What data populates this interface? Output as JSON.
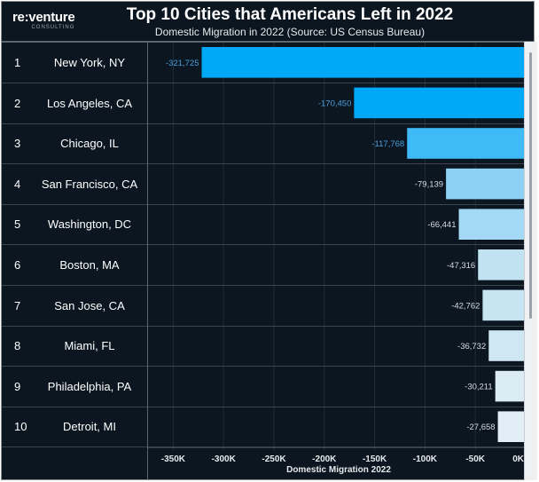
{
  "header": {
    "logo_main": "re:venture",
    "logo_sub": "CONSULTING",
    "title": "Top 10 Cities that Americans Left in 2022",
    "subtitle": "Domestic Migration in 2022 (Source: US Census Bureau)"
  },
  "rows": [
    {
      "rank": "1",
      "city": "New York, NY"
    },
    {
      "rank": "2",
      "city": "Los Angeles, CA"
    },
    {
      "rank": "3",
      "city": "Chicago, IL"
    },
    {
      "rank": "4",
      "city": "San Francisco, CA"
    },
    {
      "rank": "5",
      "city": "Washington, DC"
    },
    {
      "rank": "6",
      "city": "Boston, MA"
    },
    {
      "rank": "7",
      "city": "San Jose, CA"
    },
    {
      "rank": "8",
      "city": "Miami, FL"
    },
    {
      "rank": "9",
      "city": "Philadelphia, PA"
    },
    {
      "rank": "10",
      "city": "Detroit, MI"
    }
  ],
  "chart_data": {
    "type": "bar",
    "orientation": "horizontal",
    "title": "Top 10 Cities that Americans Left in 2022",
    "subtitle": "Domestic Migration in 2022 (Source: US Census Bureau)",
    "categories": [
      "New York, NY",
      "Los Angeles, CA",
      "Chicago, IL",
      "San Francisco, CA",
      "Washington, DC",
      "Boston, MA",
      "San Jose, CA",
      "Miami, FL",
      "Philadelphia, PA",
      "Detroit, MI"
    ],
    "values": [
      -321725,
      -170450,
      -117768,
      -79139,
      -66441,
      -47316,
      -42762,
      -36732,
      -30211,
      -27658
    ],
    "data_labels": [
      "-321,725",
      "-170,450",
      "-117,768",
      "-79,139",
      "-66,441",
      "-47,316",
      "-42,762",
      "-36,732",
      "-30,211",
      "-27,658"
    ],
    "colors": [
      "#00a9f7",
      "#00a9f7",
      "#3fbaf7",
      "#8dd2f6",
      "#a3d9f4",
      "#c0e2f1",
      "#c6e4f1",
      "#cfe7f2",
      "#dcecf4",
      "#e1eef5"
    ],
    "label_color_dark": "#4a9fe0",
    "label_color_light": "#d7dde2",
    "xlabel": "Domestic Migration 2022",
    "ylabel": "",
    "xlim": [
      -380000,
      0
    ],
    "x_ticks": [
      -350000,
      -300000,
      -250000,
      -200000,
      -150000,
      -100000,
      -50000,
      0
    ],
    "x_tick_labels": [
      "-350K",
      "-300K",
      "-250K",
      "-200K",
      "-150K",
      "-100K",
      "-50K",
      "0K"
    ],
    "grid": true,
    "legend": "none"
  }
}
